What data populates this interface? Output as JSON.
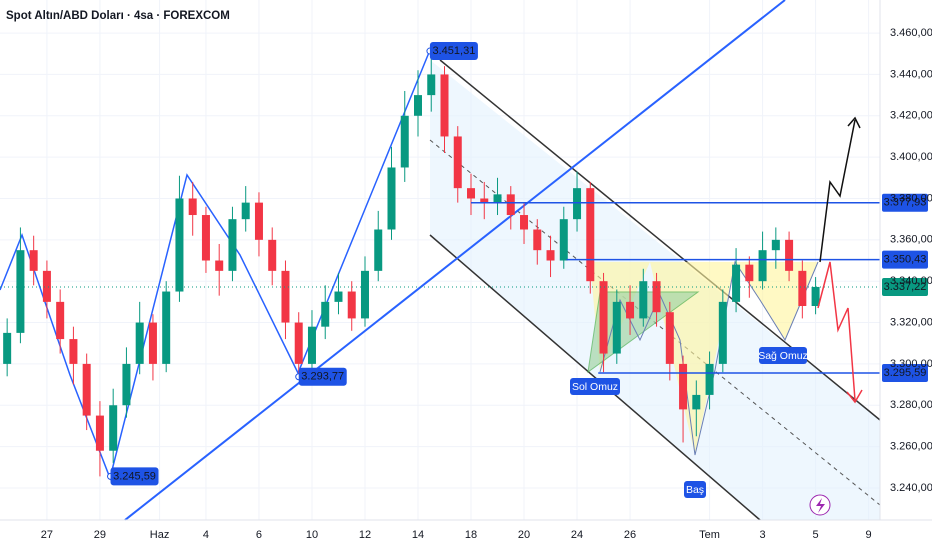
{
  "chart_data": {
    "type": "candlestick",
    "title": "Spot Altın/ABD Doları · 4sa · FOREXCOM",
    "up_color": "#089981",
    "down_color": "#f23645",
    "grid": true,
    "xlim": [
      -1.77,
      31.43
    ],
    "ylim": [
      3224.5,
      3476
    ],
    "xticks": [
      {
        "value": 0,
        "label": "27"
      },
      {
        "value": 2,
        "label": "29"
      },
      {
        "value": 4.25,
        "label": "Haz"
      },
      {
        "value": 6,
        "label": "4"
      },
      {
        "value": 8,
        "label": "6"
      },
      {
        "value": 10,
        "label": "10"
      },
      {
        "value": 12,
        "label": "12"
      },
      {
        "value": 14,
        "label": "14"
      },
      {
        "value": 16,
        "label": "18"
      },
      {
        "value": 18,
        "label": "20"
      },
      {
        "value": 20,
        "label": "24"
      },
      {
        "value": 22,
        "label": "26"
      },
      {
        "value": 25,
        "label": "Tem"
      },
      {
        "value": 27,
        "label": "3"
      },
      {
        "value": 29,
        "label": "5"
      },
      {
        "value": 31,
        "label": "9"
      }
    ],
    "yticks": [
      {
        "value": 3460,
        "label": "3.460,00"
      },
      {
        "value": 3440,
        "label": "3.440,00"
      },
      {
        "value": 3420,
        "label": "3.420,00"
      },
      {
        "value": 3400,
        "label": "3.400,00"
      },
      {
        "value": 3380,
        "label": "3.380,00"
      },
      {
        "value": 3360,
        "label": "3.360,00"
      },
      {
        "value": 3340,
        "label": "3.340,00"
      },
      {
        "value": 3320,
        "label": "3.320,00"
      },
      {
        "value": 3300,
        "label": "3.300,00"
      },
      {
        "value": 3280,
        "label": "3.280,00"
      },
      {
        "value": 3260,
        "label": "3.260,00"
      },
      {
        "value": 3240,
        "label": "3.240,00"
      }
    ],
    "x": [
      -1.5,
      -1,
      -0.5,
      0,
      0.5,
      1,
      1.5,
      2,
      2.5,
      3,
      3.5,
      4,
      4.5,
      5,
      5.5,
      6,
      6.5,
      7,
      7.5,
      8,
      8.5,
      9,
      9.5,
      10,
      10.5,
      11,
      11.5,
      12,
      12.5,
      13,
      13.5,
      14,
      14.5,
      15,
      15.5,
      16,
      16.5,
      17,
      17.5,
      18,
      18.5,
      19,
      19.5,
      20,
      20.5,
      21,
      21.5,
      22,
      22.5,
      23,
      23.5,
      24,
      24.5,
      25,
      25.5,
      26,
      26.5,
      27,
      27.5,
      28,
      28.5,
      29
    ],
    "open": [
      3300,
      3315,
      3355,
      3345,
      3330,
      3312,
      3300,
      3275,
      3258,
      3280,
      3300,
      3320,
      3300,
      3335,
      3380,
      3372,
      3350,
      3345,
      3370,
      3378,
      3360,
      3345,
      3320,
      3300,
      3318,
      3330,
      3335,
      3322,
      3345,
      3365,
      3395,
      3420,
      3430,
      3440,
      3410,
      3385,
      3380,
      3378,
      3382,
      3372,
      3365,
      3355,
      3350,
      3370,
      3385,
      3340,
      3305,
      3330,
      3322,
      3340,
      3325,
      3300,
      3278,
      3285,
      3300,
      3330,
      3348,
      3340,
      3355,
      3360,
      3345,
      3328
    ],
    "high": [
      3322,
      3366,
      3362,
      3350,
      3336,
      3318,
      3305,
      3282,
      3288,
      3308,
      3330,
      3324,
      3340,
      3391,
      3388,
      3376,
      3358,
      3376,
      3386,
      3383,
      3366,
      3350,
      3325,
      3326,
      3338,
      3344,
      3340,
      3352,
      3374,
      3405,
      3432,
      3442,
      3451.31,
      3444,
      3415,
      3392,
      3388,
      3390,
      3386,
      3378,
      3370,
      3362,
      3376,
      3393,
      3388,
      3344,
      3336,
      3338,
      3346,
      3344,
      3330,
      3304,
      3292,
      3306,
      3336,
      3356,
      3352,
      3364,
      3366,
      3364,
      3350,
      3342
    ],
    "low": [
      3294,
      3310,
      3338,
      3322,
      3305,
      3290,
      3268,
      3245.59,
      3252,
      3274,
      3295,
      3292,
      3296,
      3330,
      3362,
      3344,
      3333,
      3340,
      3364,
      3352,
      3338,
      3312,
      3293.77,
      3296,
      3312,
      3324,
      3316,
      3318,
      3340,
      3360,
      3388,
      3410,
      3422,
      3402,
      3378,
      3372,
      3370,
      3372,
      3365,
      3358,
      3348,
      3342,
      3346,
      3364,
      3334,
      3296,
      3300,
      3314,
      3318,
      3318,
      3292,
      3262,
      3265,
      3278,
      3296,
      3325,
      3332,
      3336,
      3346,
      3340,
      3322,
      3324
    ],
    "close": [
      3315,
      3355,
      3345,
      3330,
      3312,
      3300,
      3275,
      3258,
      3280,
      3300,
      3320,
      3300,
      3335,
      3380,
      3372,
      3350,
      3345,
      3370,
      3378,
      3360,
      3345,
      3320,
      3300,
      3318,
      3330,
      3335,
      3322,
      3345,
      3365,
      3395,
      3420,
      3430,
      3440,
      3410,
      3385,
      3380,
      3378,
      3382,
      3372,
      3365,
      3355,
      3350,
      3370,
      3385,
      3340,
      3305,
      3330,
      3322,
      3340,
      3325,
      3300,
      3278,
      3285,
      3300,
      3330,
      3348,
      3340,
      3355,
      3360,
      3345,
      3328,
      3337.22
    ],
    "levels": [
      {
        "value": 3377.93,
        "label": "3.377,93",
        "x0": 16.0,
        "color": "#1e53e5"
      },
      {
        "value": 3350.43,
        "label": "3.350,43",
        "x0": 19.6,
        "color": "#1e53e5"
      },
      {
        "value": 3337.22,
        "label": "3.337,22",
        "x0": -1.77,
        "color": "#089981"
      },
      {
        "value": 3295.59,
        "label": "3.295,59",
        "x0": 20.8,
        "color": "#1e53e5"
      }
    ],
    "callouts": [
      {
        "value": 3451.31,
        "label": "3.451,31",
        "x": 14.45
      },
      {
        "value": 3293.77,
        "label": "3.293,77",
        "x": 9.5
      },
      {
        "value": 3245.59,
        "label": "3.245,59",
        "x": 2.4
      }
    ],
    "pattern_labels": [
      "Sol Omuz",
      "Baş",
      "Sağ Omuz"
    ]
  }
}
